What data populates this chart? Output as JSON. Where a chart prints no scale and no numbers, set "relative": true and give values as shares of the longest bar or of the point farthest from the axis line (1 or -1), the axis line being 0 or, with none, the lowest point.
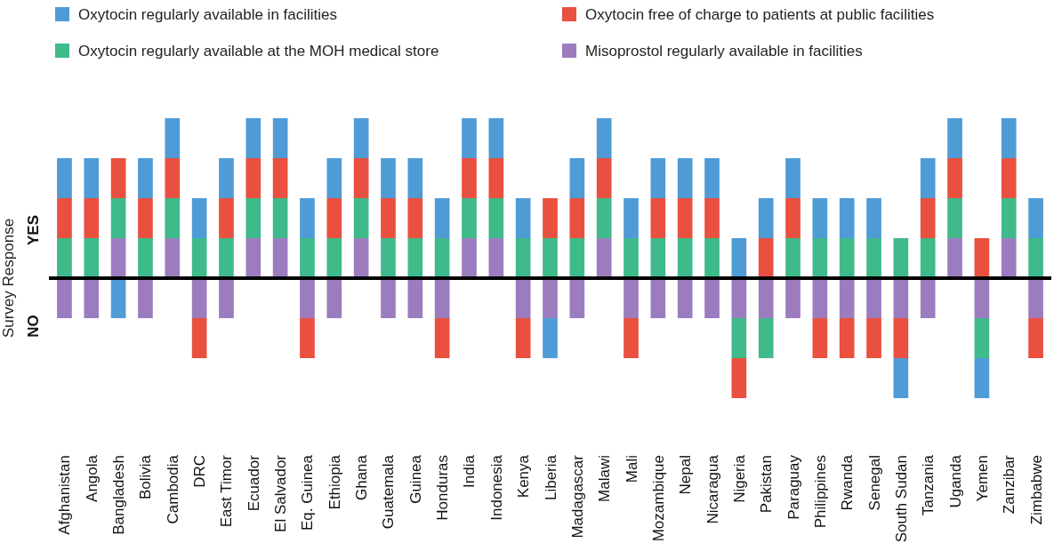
{
  "chart_data": {
    "type": "bar",
    "stacked": true,
    "relative": true,
    "ylabel": "Survey Response",
    "annotations": [
      "YES",
      "NO"
    ],
    "legend": "top",
    "categories": [
      "Afghanistan",
      "Angola",
      "Bangladesh",
      "Bolivia",
      "Cambodia",
      "DRC",
      "East Timor",
      "Ecuador",
      "El Salvador",
      "Eq. Guinea",
      "Ethiopia",
      "Ghana",
      "Guatemala",
      "Guinea",
      "Honduras",
      "India",
      "Indonesia",
      "Kenya",
      "Liberia",
      "Madagascar",
      "Malawi",
      "Mali",
      "Mozambique",
      "Nepal",
      "Nicaragua",
      "Nigeria",
      "Pakistan",
      "Paraguay",
      "Philippines",
      "Rwanda",
      "Senegal",
      "South Sudan",
      "Tanzania",
      "Uganda",
      "Yemen",
      "Zanzibar",
      "Zimbabwe"
    ],
    "series": [
      {
        "name": "Misoprostol regularly available in facilities",
        "color": "#9b7dbf",
        "values": [
          -0.25,
          -0.25,
          0.25,
          -0.25,
          0.25,
          -0.25,
          -0.25,
          0.25,
          0.25,
          -0.25,
          -0.25,
          0.25,
          -0.25,
          -0.25,
          -0.25,
          0.25,
          0.25,
          -0.25,
          -0.25,
          -0.25,
          0.25,
          -0.25,
          -0.25,
          -0.25,
          -0.25,
          -0.25,
          -0.25,
          -0.25,
          -0.25,
          -0.25,
          -0.25,
          -0.25,
          -0.25,
          0.25,
          -0.25,
          0.25,
          -0.25
        ]
      },
      {
        "name": "Oxytocin regularly available at the MOH medical store",
        "color": "#3fba8a",
        "values": [
          0.25,
          0.25,
          0.25,
          0.25,
          0.25,
          0.25,
          0.25,
          0.25,
          0.25,
          0.25,
          0.25,
          0.25,
          0.25,
          0.25,
          0.25,
          0.25,
          0.25,
          0.25,
          0.25,
          0.25,
          0.25,
          0.25,
          0.25,
          0.25,
          0.25,
          -0.25,
          -0.25,
          0.25,
          0.25,
          0.25,
          0.25,
          0.25,
          0.25,
          0.25,
          -0.25,
          0.25,
          0.25
        ]
      },
      {
        "name": "Oxytocin free of charge to patients at public facilities",
        "color": "#e9503f",
        "values": [
          0.25,
          0.25,
          0.25,
          0.25,
          0.25,
          -0.25,
          0.25,
          0.25,
          0.25,
          -0.25,
          0.25,
          0.25,
          0.25,
          0.25,
          -0.25,
          0.25,
          0.25,
          -0.25,
          0.25,
          0.25,
          0.25,
          -0.25,
          0.25,
          0.25,
          0.25,
          -0.25,
          0.25,
          0.25,
          -0.25,
          -0.25,
          -0.25,
          -0.25,
          0.25,
          0.25,
          0.25,
          0.25,
          -0.25
        ]
      },
      {
        "name": "Oxytocin regularly available in facilities",
        "color": "#4f9bd6",
        "values": [
          0.25,
          0.25,
          -0.25,
          0.25,
          0.25,
          0.25,
          0.25,
          0.25,
          0.25,
          0.25,
          0.25,
          0.25,
          0.25,
          0.25,
          0.25,
          0.25,
          0.25,
          0.25,
          -0.25,
          0.25,
          0.25,
          0.25,
          0.25,
          0.25,
          0.25,
          0.25,
          0.25,
          0.25,
          0.25,
          0.25,
          0.25,
          -0.25,
          0.25,
          0.25,
          -0.25,
          0.25,
          0.25
        ]
      }
    ]
  }
}
